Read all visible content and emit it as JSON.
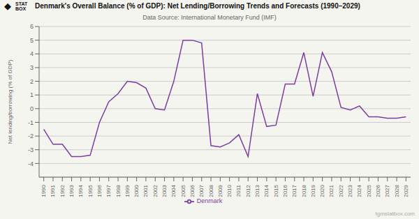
{
  "chart_data": {
    "type": "line",
    "title": "Denmark's Overall Balance (% of GDP): Net Lending/Borrowing Trends and Forecasts (1990–2029)",
    "subtitle": "Data Source: International Monetary Fund (IMF)",
    "ylabel": "Net lending/borrowing (% of GDP)",
    "annotations": [
      "◆",
      "STAT",
      "BOX",
      "tgmstatbox.com"
    ],
    "x": [
      1990,
      1991,
      1992,
      1993,
      1994,
      1995,
      1996,
      1997,
      1998,
      1999,
      2000,
      2001,
      2002,
      2003,
      2004,
      2005,
      2006,
      2007,
      2008,
      2009,
      2010,
      2011,
      2012,
      2013,
      2014,
      2015,
      2016,
      2017,
      2018,
      2019,
      2020,
      2021,
      2022,
      2023,
      2024,
      2025,
      2026,
      2027,
      2028,
      2029
    ],
    "series": [
      {
        "name": "Denmark",
        "color": "#7B3FA0",
        "values": [
          -1.5,
          -2.6,
          -2.6,
          -3.5,
          -3.5,
          -3.4,
          -1.0,
          0.5,
          1.1,
          2.0,
          1.9,
          1.5,
          0.0,
          -0.1,
          2.0,
          5.0,
          5.0,
          4.8,
          -2.7,
          -2.8,
          -2.5,
          -1.9,
          -3.5,
          1.1,
          -1.3,
          -1.2,
          1.8,
          1.8,
          4.1,
          0.9,
          4.1,
          2.7,
          0.1,
          -0.1,
          0.2,
          -0.6,
          -0.6,
          -0.7,
          -0.7,
          -0.6
        ]
      }
    ],
    "xlim": [
      1989.5,
      2029.5
    ],
    "xticks": [
      1990,
      1991,
      1992,
      1993,
      1994,
      1995,
      1996,
      1997,
      1998,
      1999,
      2000,
      2001,
      2002,
      2003,
      2004,
      2005,
      2006,
      2007,
      2008,
      2009,
      2010,
      2011,
      2012,
      2013,
      2014,
      2015,
      2016,
      2017,
      2018,
      2019,
      2020,
      2021,
      2022,
      2023,
      2024,
      2025,
      2026,
      2027,
      2028,
      2029
    ],
    "ylim": [
      -5,
      6
    ],
    "yticks": [
      -4,
      -3,
      -2,
      -1,
      0,
      1,
      2,
      3,
      4,
      5,
      6
    ],
    "grid": "y",
    "legend": "bottom"
  }
}
